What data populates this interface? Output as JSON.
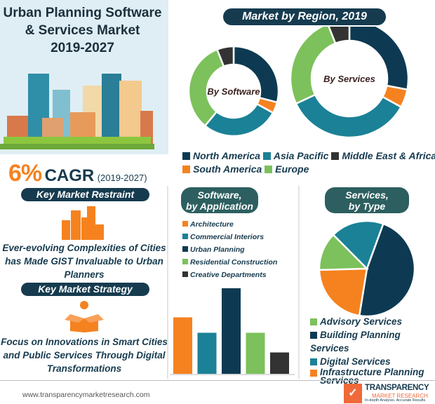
{
  "title": {
    "line1": "Urban Planning Software",
    "line2": "& Services Market",
    "line3": "2019-2027"
  },
  "cagr": {
    "value": "6%",
    "label": "CAGR",
    "period": "(2019-2027)"
  },
  "restraint": {
    "heading": "Key Market Restraint",
    "text": "Ever-evolving Complexities of Cities has Made GIST Invaluable to Urban Planners"
  },
  "strategy": {
    "heading": "Key Market Strategy",
    "text": "Focus on Innovations in Smart Cities and Public Services Through Digital Transformations"
  },
  "footer": {
    "url": "www.transparencymarketresearch.com",
    "logo": "TRANSPARENCY MARKET RESEARCH In-depth Analysis. Accurate Results"
  },
  "colors": {
    "navy": "#0d3a52",
    "teal": "#1b8197",
    "orange": "#f5821f",
    "green": "#7cc15b",
    "dark": "#333333"
  },
  "chart_data": [
    {
      "type": "pie",
      "title": "Market by Region, 2019",
      "center_label": "By Software",
      "categories": [
        "North America",
        "South America",
        "Asia Pacific",
        "Europe",
        "Middle East & Africa"
      ],
      "values": [
        29,
        4,
        28,
        33,
        6
      ],
      "colors": [
        "#0d3a52",
        "#f5821f",
        "#1b8197",
        "#7cc15b",
        "#333333"
      ]
    },
    {
      "type": "pie",
      "title": "Market by Region, 2019",
      "center_label": "By Services",
      "categories": [
        "North America",
        "South America",
        "Asia Pacific",
        "Europe",
        "Middle East & Africa"
      ],
      "values": [
        28,
        5,
        35,
        26,
        6
      ],
      "colors": [
        "#0d3a52",
        "#f5821f",
        "#1b8197",
        "#7cc15b",
        "#333333"
      ]
    },
    {
      "type": "bar",
      "title": "Software, by Application",
      "categories": [
        "Architecture",
        "Commercial Interiors",
        "Urban Planning",
        "Residential Construction",
        "Creative Departments"
      ],
      "values": [
        0.66,
        0.48,
        1.0,
        0.48,
        0.25
      ],
      "colors": [
        "#f5821f",
        "#1b8197",
        "#0d3a52",
        "#7cc15b",
        "#333333"
      ],
      "ylim": [
        0,
        1
      ]
    },
    {
      "type": "pie",
      "title": "Services, by Type",
      "categories": [
        "Building Planning Services",
        "Infrastructure Planning Services",
        "Advisory Services",
        "Digital Services"
      ],
      "values": [
        47,
        22,
        13,
        18
      ],
      "colors": [
        "#0d3a52",
        "#f5821f",
        "#7cc15b",
        "#1b8197"
      ]
    }
  ],
  "region_legend": {
    "title": "Market by Region, 2019",
    "items": [
      {
        "label": "North America",
        "color": "#0d3a52"
      },
      {
        "label": "Asia Pacific",
        "color": "#1b8197"
      },
      {
        "label": "Middle East & Africa",
        "color": "#333333"
      },
      {
        "label": "South America",
        "color": "#f5821f"
      },
      {
        "label": "Europe",
        "color": "#7cc15b"
      }
    ]
  },
  "software_app": {
    "heading_line1": "Software,",
    "heading_line2": "by Application"
  },
  "services_type": {
    "heading_line1": "Services,",
    "heading_line2": "by Type",
    "legend": [
      {
        "label": "Advisory Services",
        "color": "#7cc15b"
      },
      {
        "label": "Building Planning Services",
        "color": "#0d3a52"
      },
      {
        "label": "Digital Services",
        "color": "#1b8197"
      },
      {
        "label": "Infrastructure Planning Services",
        "color": "#f5821f"
      }
    ]
  }
}
